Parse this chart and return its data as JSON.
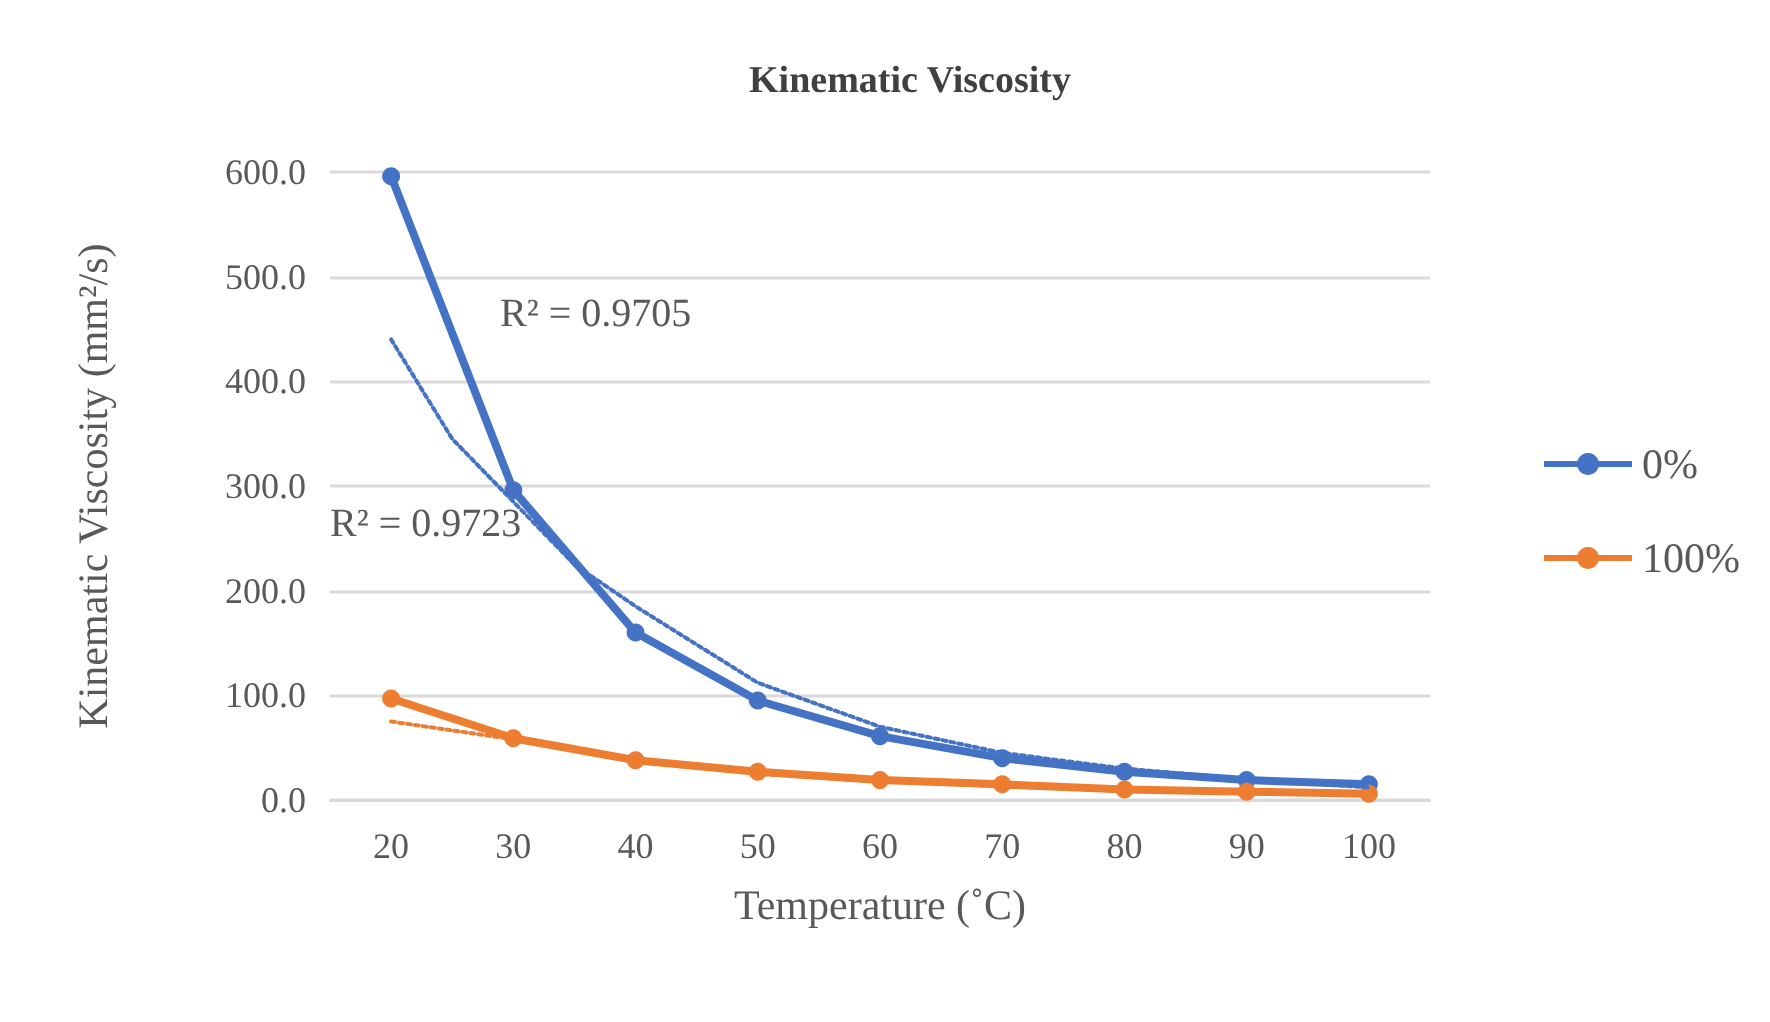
{
  "chart_data": {
    "type": "line",
    "title": "Kinematic Viscosity",
    "xlabel": "Temperature (˚C)",
    "ylabel": "Kinematic Viscosity (mm²/s)",
    "x": [
      20,
      30,
      40,
      50,
      60,
      70,
      80,
      90,
      100
    ],
    "series": [
      {
        "name": "0%",
        "color": "#4472c4",
        "values": [
          596,
          296,
          160,
          95,
          61,
          40,
          27,
          19,
          15
        ]
      },
      {
        "name": "100%",
        "color": "#ed7d31",
        "values": [
          97,
          59,
          38,
          27,
          19,
          15,
          10,
          8,
          6
        ]
      },
      {
        "type": "line",
        "color": "#4472c4",
        "line_style": "dotted",
        "marker": "none",
        "x": [
          20,
          25,
          30,
          35,
          40,
          50,
          60,
          70,
          80,
          90,
          100
        ],
        "values": [
          440,
          345,
          285,
          225,
          185,
          112,
          70,
          45,
          30,
          20,
          12
        ]
      },
      {
        "type": "line",
        "color": "#ed7d31",
        "line_style": "dotted",
        "marker": "none",
        "x": [
          20,
          30,
          40,
          50,
          60,
          70,
          80,
          90,
          100
        ],
        "values": [
          75,
          58,
          38,
          25,
          18,
          13,
          9,
          7,
          5
        ]
      }
    ],
    "annotations": [
      "R² = 0.9705",
      "R² = 0.9723"
    ],
    "xlim": [
      15,
      105
    ],
    "xticks": [
      20,
      30,
      40,
      50,
      60,
      70,
      80,
      90,
      100
    ],
    "ylim": [
      0,
      600
    ],
    "yticks": [
      {
        "value": 0,
        "label": "0.0"
      },
      {
        "value": 100,
        "label": "100.0"
      },
      {
        "value": 200,
        "label": "200.0"
      },
      {
        "value": 300,
        "label": "300.0"
      },
      {
        "value": 400,
        "label": "400.0"
      },
      {
        "value": 500,
        "label": "500.0"
      },
      {
        "value": 600,
        "label": "600.0"
      }
    ],
    "grid": "y",
    "legend": "right",
    "marker": "circle",
    "line_style": "solid"
  }
}
